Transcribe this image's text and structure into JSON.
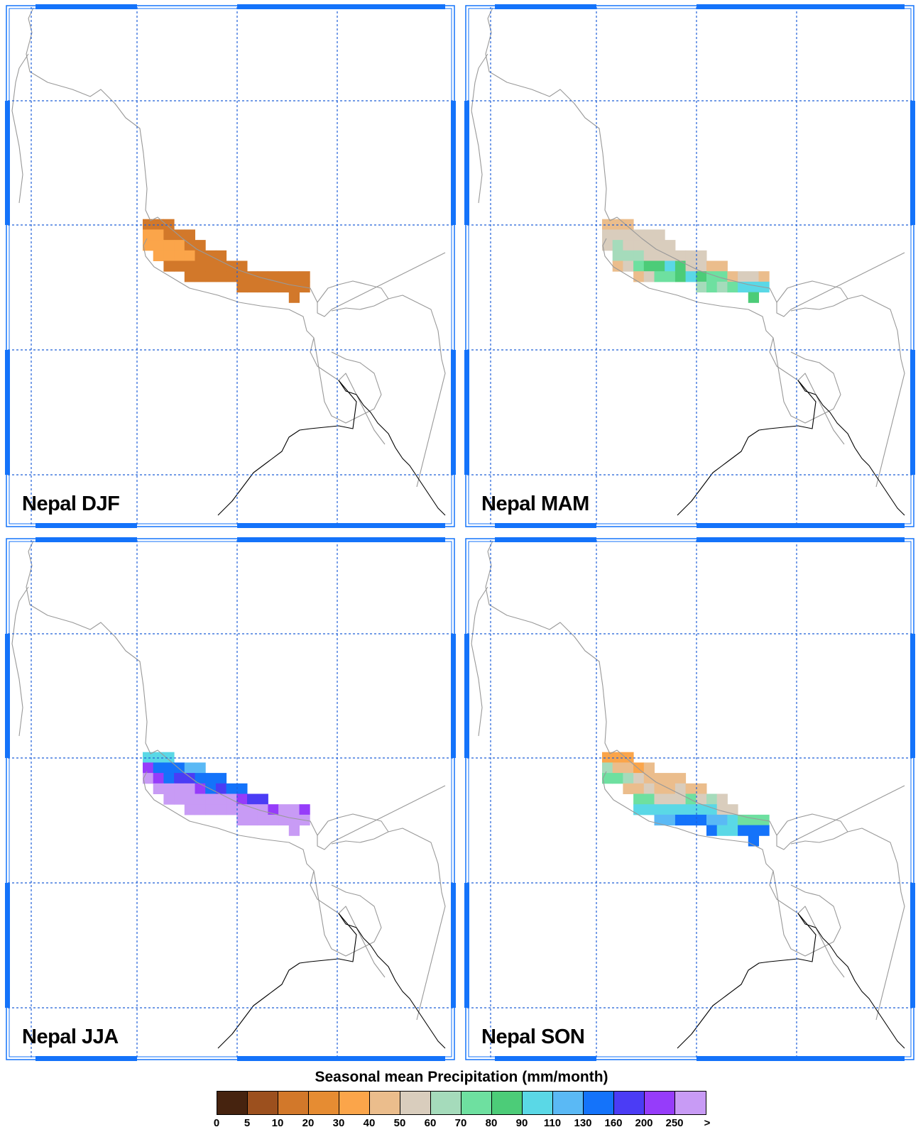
{
  "panels": [
    {
      "label": "Nepal DJF",
      "grid": [
        [
          0,
          0,
          0,
          0,
          0,
          0,
          0,
          0,
          0,
          0,
          0,
          0,
          0,
          0,
          0,
          0
        ],
        [
          2,
          2,
          2,
          0,
          0,
          0,
          0,
          0,
          0,
          0,
          0,
          0,
          0,
          0,
          0,
          0
        ],
        [
          4,
          4,
          2,
          2,
          2,
          0,
          0,
          0,
          0,
          0,
          0,
          0,
          0,
          0,
          0,
          0
        ],
        [
          4,
          4,
          4,
          4,
          2,
          2,
          0,
          0,
          0,
          0,
          0,
          0,
          0,
          0,
          0,
          0
        ],
        [
          0,
          4,
          4,
          4,
          4,
          2,
          2,
          2,
          0,
          0,
          0,
          0,
          0,
          0,
          0,
          0
        ],
        [
          0,
          0,
          2,
          2,
          2,
          2,
          2,
          2,
          2,
          2,
          0,
          0,
          0,
          0,
          0,
          0
        ],
        [
          0,
          0,
          0,
          0,
          2,
          2,
          2,
          2,
          2,
          2,
          2,
          2,
          2,
          2,
          2,
          2
        ],
        [
          0,
          0,
          0,
          0,
          0,
          0,
          0,
          0,
          0,
          2,
          2,
          2,
          2,
          2,
          2,
          2
        ],
        [
          0,
          0,
          0,
          0,
          0,
          0,
          0,
          0,
          0,
          0,
          0,
          0,
          0,
          0,
          2,
          0
        ]
      ]
    },
    {
      "label": "Nepal MAM",
      "grid": [
        [
          0,
          0,
          0,
          0,
          0,
          0,
          0,
          0,
          0,
          0,
          0,
          0,
          0,
          0,
          0,
          0
        ],
        [
          5,
          5,
          5,
          0,
          0,
          0,
          0,
          0,
          0,
          0,
          0,
          0,
          0,
          0,
          0,
          0
        ],
        [
          6,
          6,
          6,
          6,
          6,
          6,
          0,
          0,
          0,
          0,
          0,
          0,
          0,
          0,
          0,
          0
        ],
        [
          6,
          7,
          6,
          6,
          6,
          6,
          6,
          0,
          0,
          0,
          0,
          0,
          0,
          0,
          0,
          0
        ],
        [
          0,
          7,
          7,
          7,
          6,
          6,
          6,
          6,
          6,
          6,
          0,
          0,
          0,
          0,
          0,
          0
        ],
        [
          0,
          5,
          6,
          8,
          9,
          9,
          10,
          9,
          6,
          6,
          5,
          5,
          0,
          0,
          0,
          0
        ],
        [
          0,
          0,
          0,
          5,
          6,
          8,
          8,
          9,
          10,
          9,
          8,
          8,
          5,
          6,
          6,
          5
        ],
        [
          0,
          0,
          0,
          0,
          0,
          0,
          0,
          0,
          0,
          7,
          8,
          7,
          8,
          10,
          10,
          10
        ],
        [
          0,
          0,
          0,
          0,
          0,
          0,
          0,
          0,
          0,
          0,
          0,
          0,
          0,
          0,
          9,
          0
        ]
      ]
    },
    {
      "label": "Nepal JJA",
      "grid": [
        [
          0,
          0,
          0,
          0,
          0,
          0,
          0,
          0,
          0,
          0,
          0,
          0,
          0,
          0,
          0,
          0
        ],
        [
          10,
          10,
          10,
          0,
          0,
          0,
          0,
          0,
          0,
          0,
          0,
          0,
          0,
          0,
          0,
          0
        ],
        [
          14,
          12,
          12,
          12,
          11,
          11,
          0,
          0,
          0,
          0,
          0,
          0,
          0,
          0,
          0,
          0
        ],
        [
          15,
          14,
          12,
          13,
          13,
          12,
          12,
          12,
          0,
          0,
          0,
          0,
          0,
          0,
          0,
          0
        ],
        [
          0,
          15,
          15,
          15,
          15,
          14,
          12,
          13,
          12,
          12,
          0,
          0,
          0,
          0,
          0,
          0
        ],
        [
          0,
          0,
          15,
          15,
          15,
          15,
          15,
          15,
          15,
          14,
          13,
          13,
          0,
          0,
          0,
          0
        ],
        [
          0,
          0,
          0,
          0,
          15,
          15,
          15,
          15,
          15,
          15,
          15,
          15,
          14,
          15,
          15,
          14
        ],
        [
          0,
          0,
          0,
          0,
          0,
          0,
          0,
          0,
          0,
          15,
          15,
          15,
          15,
          15,
          15,
          15
        ],
        [
          0,
          0,
          0,
          0,
          0,
          0,
          0,
          0,
          0,
          0,
          0,
          0,
          0,
          0,
          15,
          0
        ]
      ]
    },
    {
      "label": "Nepal SON",
      "grid": [
        [
          0,
          0,
          0,
          0,
          0,
          0,
          0,
          0,
          0,
          0,
          0,
          0,
          0,
          0,
          0,
          0
        ],
        [
          4,
          4,
          4,
          0,
          0,
          0,
          0,
          0,
          0,
          0,
          0,
          0,
          0,
          0,
          0,
          0
        ],
        [
          7,
          5,
          5,
          4,
          5,
          0,
          0,
          0,
          0,
          0,
          0,
          0,
          0,
          0,
          0,
          0
        ],
        [
          8,
          8,
          7,
          6,
          5,
          5,
          5,
          5,
          0,
          0,
          0,
          0,
          0,
          0,
          0,
          0
        ],
        [
          0,
          0,
          5,
          5,
          6,
          5,
          5,
          6,
          5,
          5,
          0,
          0,
          0,
          0,
          0,
          0
        ],
        [
          0,
          0,
          0,
          8,
          8,
          6,
          6,
          6,
          8,
          6,
          7,
          6,
          0,
          0,
          0,
          0
        ],
        [
          0,
          0,
          0,
          10,
          10,
          10,
          10,
          10,
          10,
          10,
          10,
          6,
          6,
          0,
          0,
          0
        ],
        [
          0,
          0,
          0,
          0,
          0,
          11,
          11,
          12,
          12,
          12,
          11,
          11,
          10,
          8,
          8,
          8
        ],
        [
          0,
          0,
          0,
          0,
          0,
          0,
          0,
          0,
          0,
          0,
          12,
          10,
          10,
          12,
          12,
          12
        ],
        [
          0,
          0,
          0,
          0,
          0,
          0,
          0,
          0,
          0,
          0,
          0,
          0,
          0,
          0,
          12,
          0
        ]
      ]
    }
  ],
  "legend": {
    "title": "Seasonal mean Precipitation (mm/month)",
    "ticks": [
      "0",
      "5",
      "10",
      "20",
      "30",
      "40",
      "50",
      "60",
      "70",
      "80",
      "90",
      "110",
      "130",
      "160",
      "200",
      "250",
      ">"
    ],
    "colors": [
      "#46230f",
      "#9c501e",
      "#d2782a",
      "#e68c32",
      "#fba54a",
      "#ebbd8c",
      "#d9cdbd",
      "#a5dbbb",
      "#6ee0a0",
      "#4ccc78",
      "#5ad8e6",
      "#5ab9f5",
      "#1473fa",
      "#4b3cf5",
      "#963cfa",
      "#c89bf5"
    ],
    "extra_colors": [
      "#55b5f0"
    ]
  },
  "map_colors": {
    "border": "#999999",
    "coast": "#000000",
    "grid": "#1f5fd8",
    "frame": "#1473fa"
  }
}
